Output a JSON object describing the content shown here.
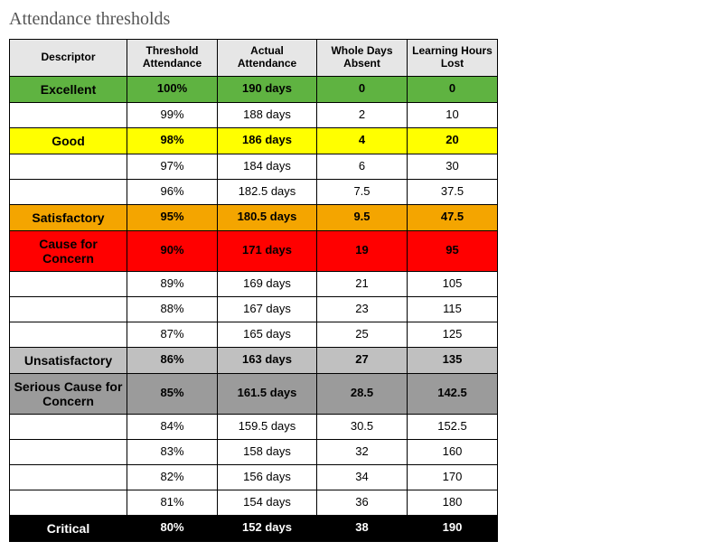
{
  "title": "Attendance thresholds",
  "columns": [
    "Descriptor",
    "Threshold Attendance",
    "Actual Attendance",
    "Whole Days Absent",
    "Learning Hours Lost"
  ],
  "colors": {
    "header_bg": "#e6e6e6",
    "excellent": "#5fb341",
    "good": "#ffff00",
    "satisfactory": "#f4a500",
    "cause_for_concern": "#ff0000",
    "unsatisfactory": "#c0c0c0",
    "serious_cause": "#9b9b9b",
    "critical": "#000000",
    "critical_text": "#ffffff",
    "blank": "#ffffff",
    "cause_text": "#000000"
  },
  "rows": [
    {
      "descriptor": "Excellent",
      "threshold": "100%",
      "actual": "190 days",
      "absent": "0",
      "lost": "0",
      "band": "excellent"
    },
    {
      "descriptor": "",
      "threshold": "99%",
      "actual": "188 days",
      "absent": "2",
      "lost": "10",
      "band": "blank"
    },
    {
      "descriptor": "Good",
      "threshold": "98%",
      "actual": "186 days",
      "absent": "4",
      "lost": "20",
      "band": "good"
    },
    {
      "descriptor": "",
      "threshold": "97%",
      "actual": "184 days",
      "absent": "6",
      "lost": "30",
      "band": "blank"
    },
    {
      "descriptor": "",
      "threshold": "96%",
      "actual": "182.5 days",
      "absent": "7.5",
      "lost": "37.5",
      "band": "blank"
    },
    {
      "descriptor": "Satisfactory",
      "threshold": "95%",
      "actual": "180.5 days",
      "absent": "9.5",
      "lost": "47.5",
      "band": "satisfactory"
    },
    {
      "descriptor": "Cause for Concern",
      "threshold": "90%",
      "actual": "171 days",
      "absent": "19",
      "lost": "95",
      "band": "cause_for_concern"
    },
    {
      "descriptor": "",
      "threshold": "89%",
      "actual": "169 days",
      "absent": "21",
      "lost": "105",
      "band": "blank"
    },
    {
      "descriptor": "",
      "threshold": "88%",
      "actual": "167 days",
      "absent": "23",
      "lost": "115",
      "band": "blank"
    },
    {
      "descriptor": "",
      "threshold": "87%",
      "actual": "165 days",
      "absent": "25",
      "lost": "125",
      "band": "blank"
    },
    {
      "descriptor": "Unsatisfactory",
      "threshold": "86%",
      "actual": "163 days",
      "absent": "27",
      "lost": "135",
      "band": "unsatisfactory"
    },
    {
      "descriptor": "Serious Cause for Concern",
      "threshold": "85%",
      "actual": "161.5 days",
      "absent": "28.5",
      "lost": "142.5",
      "band": "serious_cause"
    },
    {
      "descriptor": "",
      "threshold": "84%",
      "actual": "159.5 days",
      "absent": "30.5",
      "lost": "152.5",
      "band": "blank"
    },
    {
      "descriptor": "",
      "threshold": "83%",
      "actual": "158 days",
      "absent": "32",
      "lost": "160",
      "band": "blank"
    },
    {
      "descriptor": "",
      "threshold": "82%",
      "actual": "156 days",
      "absent": "34",
      "lost": "170",
      "band": "blank"
    },
    {
      "descriptor": "",
      "threshold": "81%",
      "actual": "154 days",
      "absent": "36",
      "lost": "180",
      "band": "blank"
    },
    {
      "descriptor": "Critical",
      "threshold": "80%",
      "actual": "152 days",
      "absent": "38",
      "lost": "190",
      "band": "critical"
    }
  ]
}
